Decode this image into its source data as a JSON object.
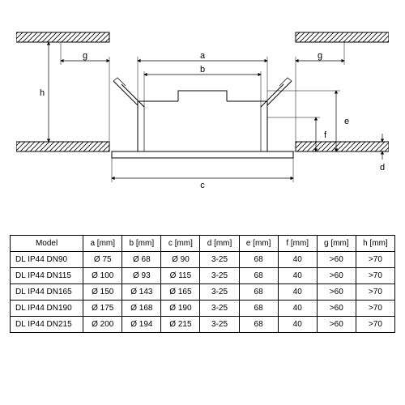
{
  "diagram": {
    "stroke": "#000000",
    "stroke_width": 1,
    "fill": "#ffffff",
    "hatch_fill": "none",
    "label_font_size": 11,
    "arrow_size": 4,
    "labels": {
      "a": "a",
      "b": "b",
      "c": "c",
      "d": "d",
      "e": "e",
      "f": "f",
      "g_left": "g",
      "g_right": "g",
      "h": "h"
    }
  },
  "table": {
    "border_color": "#000000",
    "font_size": 10,
    "text_color": "#000000",
    "columns": [
      "Model",
      "a [mm]",
      "b [mm]",
      "c [mm]",
      "d [mm]",
      "e [mm]",
      "f [mm]",
      "g [mm]",
      "h [mm]"
    ],
    "rows": [
      [
        "DL IP44 DN90",
        "Ø 75",
        "Ø 68",
        "Ø 90",
        "3-25",
        "68",
        "40",
        ">60",
        ">70"
      ],
      [
        "DL IP44 DN115",
        "Ø 100",
        "Ø 93",
        "Ø 115",
        "3-25",
        "68",
        "40",
        ">60",
        ">70"
      ],
      [
        "DL IP44 DN165",
        "Ø 150",
        "Ø 143",
        "Ø 165",
        "3-25",
        "68",
        "40",
        ">60",
        ">70"
      ],
      [
        "DL IP44 DN190",
        "Ø 175",
        "Ø 168",
        "Ø 190",
        "3-25",
        "68",
        "40",
        ">60",
        ">70"
      ],
      [
        "DL IP44 DN215",
        "Ø 200",
        "Ø 194",
        "Ø 215",
        "3-25",
        "68",
        "40",
        ">60",
        ">70"
      ]
    ]
  }
}
